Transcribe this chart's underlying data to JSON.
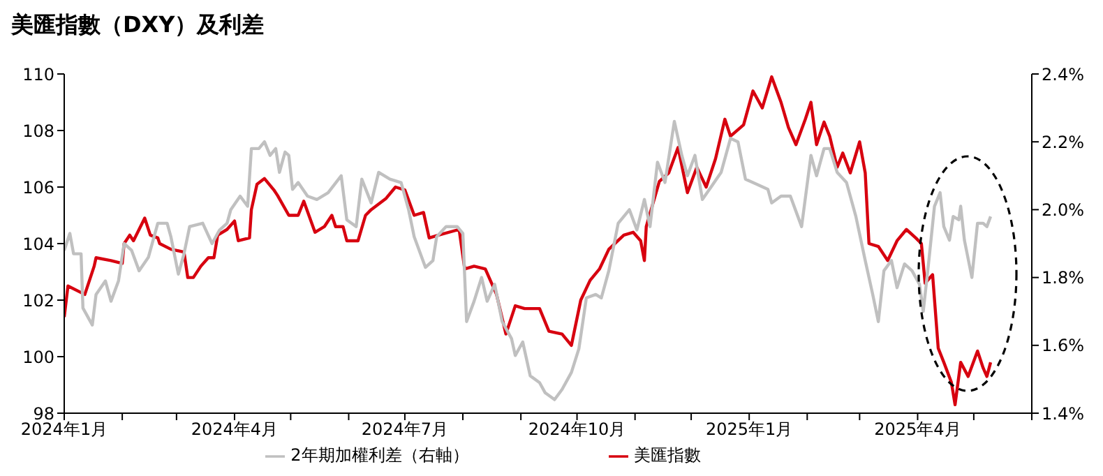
{
  "chart_data": {
    "type": "line",
    "title": "美匯指數（DXY）及利差",
    "legend": "bottom",
    "grid": false,
    "marker": "none",
    "xlim": [
      "2024-01-01",
      "2025-06-01"
    ],
    "xticks": [
      {
        "value": "2024-01-01",
        "label": "2024年1月"
      },
      {
        "value": "2024-02-01",
        "label": null
      },
      {
        "value": "2024-03-01",
        "label": null
      },
      {
        "value": "2024-04-01",
        "label": "2024年4月"
      },
      {
        "value": "2024-05-01",
        "label": null
      },
      {
        "value": "2024-06-01",
        "label": null
      },
      {
        "value": "2024-07-01",
        "label": "2024年7月"
      },
      {
        "value": "2024-08-01",
        "label": null
      },
      {
        "value": "2024-09-01",
        "label": null
      },
      {
        "value": "2024-10-01",
        "label": "2024年10月"
      },
      {
        "value": "2024-11-01",
        "label": null
      },
      {
        "value": "2024-12-01",
        "label": null
      },
      {
        "value": "2025-01-01",
        "label": "2025年1月"
      },
      {
        "value": "2025-02-01",
        "label": null
      },
      {
        "value": "2025-03-01",
        "label": null
      },
      {
        "value": "2025-04-01",
        "label": "2025年4月"
      },
      {
        "value": "2025-05-01",
        "label": null
      },
      {
        "value": "2025-06-01",
        "label": null
      }
    ],
    "ylim": [
      98,
      110
    ],
    "yticks": [
      98,
      100,
      102,
      104,
      106,
      108,
      110
    ],
    "y2lim": [
      1.4,
      2.4
    ],
    "y2ticks": [
      {
        "value": 1.4,
        "label": "1.4%"
      },
      {
        "value": 1.6,
        "label": "1.6%"
      },
      {
        "value": 1.8,
        "label": "1.8%"
      },
      {
        "value": 2.0,
        "label": "2.0%"
      },
      {
        "value": 2.2,
        "label": "2.2%"
      },
      {
        "value": 2.4,
        "label": "2.4%"
      }
    ],
    "series": [
      {
        "name": "美匯指數",
        "color": "#d7000f",
        "x": [
          "2024-01-01",
          "2024-01-03",
          "2024-01-12",
          "2024-01-17",
          "2024-01-18",
          "2024-01-26",
          "2024-02-01",
          "2024-02-02",
          "2024-02-05",
          "2024-02-07",
          "2024-02-13",
          "2024-02-16",
          "2024-02-20",
          "2024-02-21",
          "2024-02-27",
          "2024-03-05",
          "2024-03-07",
          "2024-03-10",
          "2024-03-14",
          "2024-03-18",
          "2024-03-21",
          "2024-03-23",
          "2024-03-28",
          "2024-04-01",
          "2024-04-03",
          "2024-04-09",
          "2024-04-10",
          "2024-04-13",
          "2024-04-17",
          "2024-04-22",
          "2024-04-24",
          "2024-04-30",
          "2024-05-05",
          "2024-05-08",
          "2024-05-14",
          "2024-05-19",
          "2024-05-23",
          "2024-05-25",
          "2024-05-29",
          "2024-05-31",
          "2024-06-06",
          "2024-06-10",
          "2024-06-13",
          "2024-06-21",
          "2024-06-26",
          "2024-07-01",
          "2024-07-06",
          "2024-07-11",
          "2024-07-14",
          "2024-07-19",
          "2024-07-30",
          "2024-08-02",
          "2024-08-07",
          "2024-08-13",
          "2024-08-19",
          "2024-08-24",
          "2024-08-29",
          "2024-09-03",
          "2024-09-11",
          "2024-09-16",
          "2024-09-23",
          "2024-09-28",
          "2024-10-03",
          "2024-10-08",
          "2024-10-13",
          "2024-10-18",
          "2024-10-26",
          "2024-10-31",
          "2024-11-04",
          "2024-11-06",
          "2024-11-07",
          "2024-11-14",
          "2024-11-19",
          "2024-11-24",
          "2024-11-29",
          "2024-12-04",
          "2024-12-09",
          "2024-12-14",
          "2024-12-19",
          "2024-12-22",
          "2024-12-29",
          "2025-01-03",
          "2025-01-08",
          "2025-01-13",
          "2025-01-18",
          "2025-01-22",
          "2025-01-26",
          "2025-01-31",
          "2025-02-03",
          "2025-02-06",
          "2025-02-10",
          "2025-02-13",
          "2025-02-17",
          "2025-02-20",
          "2025-02-24",
          "2025-03-01",
          "2025-03-04",
          "2025-03-06",
          "2025-03-11",
          "2025-03-16",
          "2025-03-21",
          "2025-03-26",
          "2025-03-31",
          "2025-04-03",
          "2025-04-05",
          "2025-04-09",
          "2025-04-12",
          "2025-04-15",
          "2025-04-19",
          "2025-04-21",
          "2025-04-24",
          "2025-04-28",
          "2025-05-03",
          "2025-05-06",
          "2025-05-08",
          "2025-05-10"
        ],
        "values": [
          101.4,
          102.5,
          102.2,
          103.2,
          103.5,
          103.4,
          103.3,
          104.0,
          104.3,
          104.1,
          104.9,
          104.3,
          104.2,
          104.0,
          103.8,
          103.7,
          102.8,
          102.8,
          103.2,
          103.5,
          103.5,
          104.3,
          104.5,
          104.8,
          104.1,
          104.2,
          105.2,
          106.1,
          106.3,
          105.9,
          105.7,
          105.0,
          105.0,
          105.5,
          104.4,
          104.6,
          105.0,
          104.6,
          104.6,
          104.1,
          104.1,
          105.0,
          105.2,
          105.6,
          106.0,
          105.9,
          105.0,
          105.1,
          104.2,
          104.3,
          104.5,
          103.1,
          103.2,
          103.1,
          102.2,
          100.8,
          101.8,
          101.7,
          101.7,
          100.9,
          100.8,
          100.4,
          102.0,
          102.7,
          103.1,
          103.8,
          104.3,
          104.4,
          104.1,
          103.4,
          104.6,
          106.2,
          106.5,
          107.4,
          105.8,
          106.7,
          106.0,
          107.0,
          108.4,
          107.8,
          108.2,
          109.4,
          108.8,
          109.9,
          109.0,
          108.1,
          107.5,
          108.4,
          109.0,
          107.5,
          108.3,
          107.8,
          106.7,
          107.2,
          106.5,
          107.6,
          106.5,
          104.0,
          103.9,
          103.4,
          104.1,
          104.5,
          104.2,
          104.0,
          102.6,
          102.9,
          100.3,
          99.8,
          99.1,
          98.3,
          99.8,
          99.3,
          100.2,
          99.6,
          99.3,
          99.8
        ]
      },
      {
        "name": "2年期加權利差（右軸）",
        "color": "#c0c0c0",
        "axis": "y2",
        "x": [
          "2024-01-01",
          "2024-01-04",
          "2024-01-06",
          "2024-01-10",
          "2024-01-11",
          "2024-01-16",
          "2024-01-18",
          "2024-01-23",
          "2024-01-26",
          "2024-01-30",
          "2024-02-02",
          "2024-02-06",
          "2024-02-10",
          "2024-02-15",
          "2024-02-20",
          "2024-02-25",
          "2024-02-27",
          "2024-03-02",
          "2024-03-05",
          "2024-03-08",
          "2024-03-15",
          "2024-03-20",
          "2024-03-24",
          "2024-03-28",
          "2024-03-30",
          "2024-04-04",
          "2024-04-08",
          "2024-04-10",
          "2024-04-14",
          "2024-04-17",
          "2024-04-20",
          "2024-04-23",
          "2024-04-25",
          "2024-04-28",
          "2024-04-30",
          "2024-05-02",
          "2024-05-05",
          "2024-05-10",
          "2024-05-15",
          "2024-05-21",
          "2024-05-28",
          "2024-05-31",
          "2024-06-05",
          "2024-06-08",
          "2024-06-13",
          "2024-06-17",
          "2024-06-23",
          "2024-06-29",
          "2024-07-03",
          "2024-07-06",
          "2024-07-12",
          "2024-07-16",
          "2024-07-18",
          "2024-07-23",
          "2024-07-29",
          "2024-08-01",
          "2024-08-03",
          "2024-08-07",
          "2024-08-11",
          "2024-08-14",
          "2024-08-18",
          "2024-08-22",
          "2024-08-27",
          "2024-08-29",
          "2024-09-02",
          "2024-09-06",
          "2024-09-11",
          "2024-09-14",
          "2024-09-19",
          "2024-09-23",
          "2024-09-28",
          "2024-10-02",
          "2024-10-06",
          "2024-10-11",
          "2024-10-14",
          "2024-10-18",
          "2024-10-23",
          "2024-10-29",
          "2024-11-02",
          "2024-11-06",
          "2024-11-09",
          "2024-11-13",
          "2024-11-17",
          "2024-11-22",
          "2024-11-26",
          "2024-11-29",
          "2024-12-03",
          "2024-12-07",
          "2024-12-12",
          "2024-12-17",
          "2024-12-22",
          "2024-12-26",
          "2024-12-30",
          "2025-01-03",
          "2025-01-11",
          "2025-01-13",
          "2025-01-18",
          "2025-01-23",
          "2025-01-27",
          "2025-01-29",
          "2025-02-03",
          "2025-02-06",
          "2025-02-10",
          "2025-02-13",
          "2025-02-17",
          "2025-02-22",
          "2025-02-27",
          "2025-03-04",
          "2025-03-08",
          "2025-03-11",
          "2025-03-14",
          "2025-03-18",
          "2025-03-21",
          "2025-03-25",
          "2025-03-29",
          "2025-04-02",
          "2025-04-04",
          "2025-04-07",
          "2025-04-10",
          "2025-04-13",
          "2025-04-15",
          "2025-04-18",
          "2025-04-20",
          "2025-04-23",
          "2025-04-24",
          "2025-04-26",
          "2025-04-30",
          "2025-05-03",
          "2025-05-06",
          "2025-05-08",
          "2025-05-10"
        ],
        "values": [
          1.88,
          1.93,
          1.87,
          1.87,
          1.71,
          1.66,
          1.75,
          1.79,
          1.73,
          1.79,
          1.9,
          1.88,
          1.82,
          1.86,
          1.96,
          1.96,
          1.92,
          1.81,
          1.87,
          1.95,
          1.96,
          1.9,
          1.94,
          1.96,
          2.0,
          2.04,
          2.01,
          2.18,
          2.18,
          2.2,
          2.16,
          2.18,
          2.11,
          2.17,
          2.16,
          2.06,
          2.08,
          2.04,
          2.03,
          2.05,
          2.1,
          1.97,
          1.95,
          2.09,
          2.02,
          2.11,
          2.09,
          2.08,
          2.0,
          1.92,
          1.83,
          1.85,
          1.92,
          1.95,
          1.95,
          1.93,
          1.67,
          1.73,
          1.8,
          1.73,
          1.78,
          1.67,
          1.62,
          1.57,
          1.61,
          1.51,
          1.49,
          1.46,
          1.44,
          1.47,
          1.52,
          1.59,
          1.74,
          1.75,
          1.74,
          1.82,
          1.96,
          2.0,
          1.94,
          2.03,
          1.95,
          2.14,
          2.08,
          2.26,
          2.16,
          2.1,
          2.16,
          2.03,
          2.07,
          2.11,
          2.21,
          2.2,
          2.09,
          2.08,
          2.06,
          2.02,
          2.04,
          2.04,
          1.98,
          1.95,
          2.16,
          2.1,
          2.18,
          2.18,
          2.11,
          2.08,
          1.98,
          1.85,
          1.75,
          1.67,
          1.82,
          1.85,
          1.77,
          1.84,
          1.82,
          1.78,
          1.7,
          1.85,
          2.01,
          2.05,
          1.95,
          1.91,
          1.98,
          1.97,
          2.01,
          1.91,
          1.8,
          1.96,
          1.96,
          1.95,
          1.98
        ]
      }
    ]
  }
}
